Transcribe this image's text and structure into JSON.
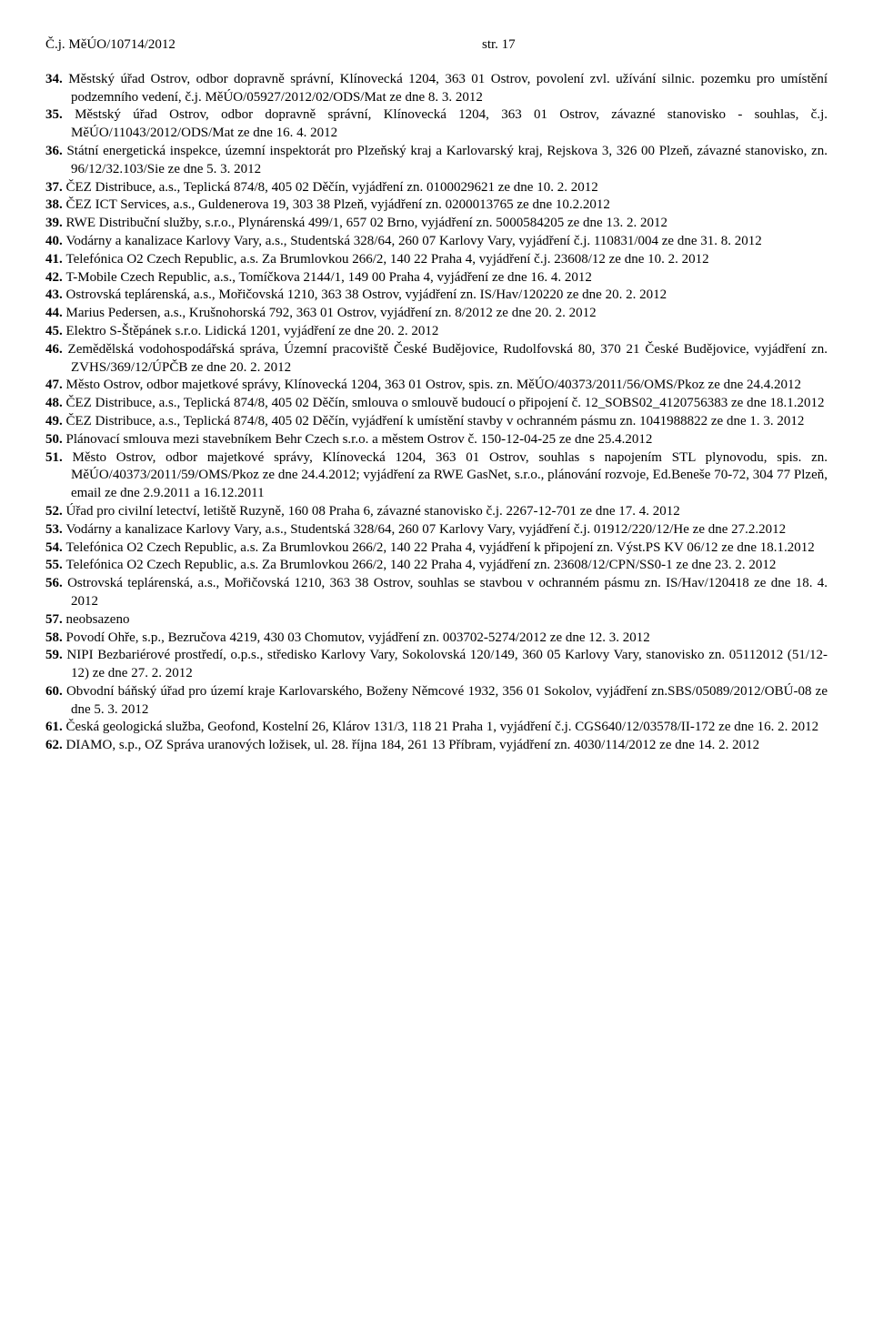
{
  "header": {
    "left": "Č.j. MěÚO/10714/2012",
    "right": "str. 17"
  },
  "items": [
    "Městský úřad Ostrov, odbor dopravně správní, Klínovecká 1204, 363 01 Ostrov,  povolení  zvl. užívání silnic.  pozemku  pro umístění podzemního vedení, č.j.  MěÚO/05927/2012/02/ODS/Mat ze dne 8. 3. 2012",
    "Městský úřad Ostrov, odbor dopravně správní, Klínovecká 1204, 363 01 Ostrov, závazné stanovisko - souhlas, č.j. MěÚO/11043/2012/ODS/Mat ze dne 16. 4. 2012",
    "Státní energetická inspekce,  územní inspektorát pro Plzeňský kraj a Karlovarský kraj, Rejskova 3, 326 00 Plzeň,  závazné stanovisko,  zn. 96/12/32.103/Sie  ze dne 5. 3. 2012",
    "ČEZ Distribuce, a.s., Teplická 874/8, 405 02 Děčín, vyjádření zn. 0100029621 ze dne 10. 2. 2012",
    "ČEZ ICT Services, a.s., Guldenerova 19, 303 38 Plzeň, vyjádření zn. 0200013765 ze dne 10.2.2012",
    "RWE Distribuční služby, s.r.o., Plynárenská 499/1, 657 02 Brno, vyjádření zn. 5000584205 ze dne 13. 2. 2012",
    "Vodárny a kanalizace Karlovy Vary, a.s., Studentská 328/64, 260 07 Karlovy Vary, vyjádření č.j. 110831/004 ze dne 31. 8. 2012",
    "Telefónica O2 Czech Republic, a.s. Za Brumlovkou 266/2, 140 22 Praha 4, vyjádření č.j. 23608/12 ze dne  10. 2. 2012",
    "T-Mobile Czech Republic, a.s., Tomíčkova 2144/1, 149 00 Praha 4, vyjádření ze dne 16. 4. 2012",
    "Ostrovská teplárenská, a.s., Mořičovská 1210, 363 38 Ostrov, vyjádření zn. IS/Hav/120220 ze dne 20. 2. 2012",
    "Marius Pedersen, a.s., Krušnohorská 792, 363 01 Ostrov, vyjádření zn. 8/2012 ze dne 20. 2. 2012",
    "Elektro S-Štěpánek s.r.o. Lidická 1201, vyjádření ze dne 20. 2. 2012",
    "Zemědělská vodohospodářská správa, Územní pracoviště České Budějovice,  Rudolfovská 80, 370 21 České Budějovice,  vyjádření zn. ZVHS/369/12/ÚPČB ze dne 20. 2. 2012",
    "Město  Ostrov,  odbor  majetkové  správy,  Klínovecká  1204,  363  01  Ostrov,  spis.  zn. MěÚO/40373/2011/56/OMS/Pkoz ze dne 24.4.2012",
    "ČEZ Distribuce, a.s., Teplická 874/8, 405 02 Děčín,   smlouva  o  smlouvě budoucí o připojení    č. 12_SOBS02_4120756383 ze dne 18.1.2012",
    "ČEZ Distribuce, a.s., Teplická 874/8, 405 02 Děčín, vyjádření k umístění stavby v ochranném pásmu zn. 1041988822 ze dne 1. 3. 2012",
    "Plánovací smlouva mezi stavebníkem Behr Czech s.r.o. a městem Ostrov č. 150-12-04-25 ze dne 25.4.2012",
    "Město Ostrov, odbor majetkové správy, Klínovecká 1204, 363 01 Ostrov, souhlas s napojením STL plynovodu,  spis.  zn.  MěÚO/40373/2011/59/OMS/Pkoz  ze  dne  24.4.2012;   vyjádření za     RWE GasNet,  s.r.o.,  plánování  rozvoje,  Ed.Beneše  70-72,  304  77  Plzeň,  email  ze  dne  2.9.2011  a 16.12.2011",
    "Úřad pro civilní letectví, letiště Ruzyně, 160 08 Praha 6, závazné stanovisko č.j. 2267-12-701 ze dne 17. 4. 2012",
    "Vodárny a kanalizace Karlovy Vary, a.s., Studentská 328/64, 260 07 Karlovy Vary, vyjádření č.j. 01912/220/12/He ze dne 27.2.2012",
    "Telefónica O2 Czech Republic, a.s. Za Brumlovkou 266/2, 140 22 Praha 4, vyjádření k připojení zn. Výst.PS KV 06/12 ze dne 18.1.2012",
    "Telefónica  O2  Czech  Republic,  a.s.  Za  Brumlovkou  266/2,  140  22  Praha  4,  vyjádření  zn. 23608/12/CPN/SS0-1 ze dne 23. 2. 2012",
    "Ostrovská teplárenská, a.s., Mořičovská 1210, 363 38 Ostrov, souhlas se stavbou v ochranném pásmu zn. IS/Hav/120418 ze dne 18. 4. 2012",
    "neobsazeno",
    "Povodí Ohře, s.p., Bezručova 4219, 430 03 Chomutov, vyjádření zn. 003702-5274/2012 ze dne 12. 3. 2012",
    "NIPI Bezbariérové prostředí, o.p.s., středisko Karlovy Vary, Sokolovská 120/149, 360 05 Karlovy Vary, stanovisko zn. 05112012 (51/12-12) ze dne 27. 2. 2012",
    "Obvodní báňský úřad pro území kraje Karlovarského, Boženy Němcové 1932, 356 01 Sokolov, vyjádření zn.SBS/05089/2012/OBÚ-08 ze dne 5. 3. 2012",
    "Česká geologická služba, Geofond, Kostelní 26, Klárov 131/3, 118 21 Praha 1, vyjádření č.j. CGS640/12/03578/II-172 ze dne 16. 2. 2012",
    "DIAMO,  s.p.,  OZ  Správa  uranových  ložisek,  ul.  28.  října  184,  261  13  Příbram,  vyjádření  zn. 4030/114/2012 ze dne 14. 2. 2012"
  ]
}
